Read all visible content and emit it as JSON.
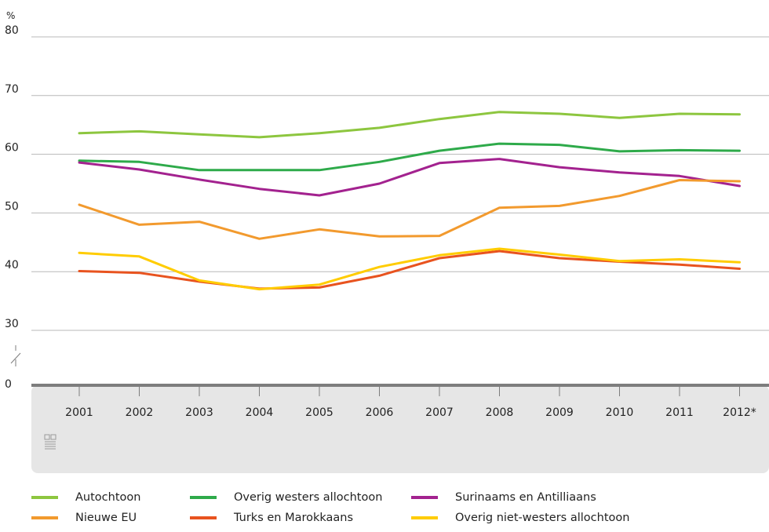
{
  "chart_data": {
    "type": "line",
    "unit_label": "%",
    "y_ticks": [
      80,
      70,
      60,
      50,
      40,
      30
    ],
    "y_zero_label": "0",
    "y_axis_broken": true,
    "categories": [
      "2001",
      "2002",
      "2003",
      "2004",
      "2005",
      "2006",
      "2007",
      "2008",
      "2009",
      "2010",
      "2011",
      "2012*"
    ],
    "ylim": [
      30,
      80
    ],
    "grid": true,
    "legend_position": "bottom",
    "series": [
      {
        "name": "Autochtoon",
        "color": "#8dc63f",
        "values": [
          63.6,
          63.9,
          63.4,
          62.9,
          63.6,
          64.5,
          66.0,
          67.2,
          66.9,
          66.2,
          66.9,
          66.8
        ]
      },
      {
        "name": "Overig westers allochtoon",
        "color": "#2eaa4a",
        "values": [
          58.9,
          58.7,
          57.3,
          57.3,
          57.3,
          58.7,
          60.6,
          61.8,
          61.6,
          60.5,
          60.7,
          60.6
        ]
      },
      {
        "name": "Surinaams en Antilliaans",
        "color": "#a3228f",
        "values": [
          58.6,
          57.4,
          55.7,
          54.1,
          53.0,
          55.0,
          58.5,
          59.2,
          57.8,
          56.9,
          56.3,
          54.6
        ]
      },
      {
        "name": "Nieuwe EU",
        "color": "#f29a2e",
        "values": [
          51.4,
          48.0,
          48.5,
          45.6,
          47.2,
          46.0,
          46.1,
          50.9,
          51.2,
          52.9,
          55.6,
          55.4
        ]
      },
      {
        "name": "Turks en Marokkaans",
        "color": "#e8531f",
        "values": [
          40.1,
          39.8,
          38.3,
          37.1,
          37.3,
          39.3,
          42.3,
          43.5,
          42.3,
          41.7,
          41.2,
          40.5
        ]
      },
      {
        "name": "Overig niet-westers allochtoon",
        "color": "#ffcc00",
        "values": [
          43.2,
          42.6,
          38.5,
          37.0,
          37.8,
          40.8,
          42.8,
          43.9,
          42.9,
          41.8,
          42.1,
          41.6
        ]
      }
    ]
  },
  "logo_text": "cbs",
  "colors": {
    "grid": "#b8b8b8",
    "axis": "#7d7d7d",
    "panel": "#e6e6e6"
  }
}
